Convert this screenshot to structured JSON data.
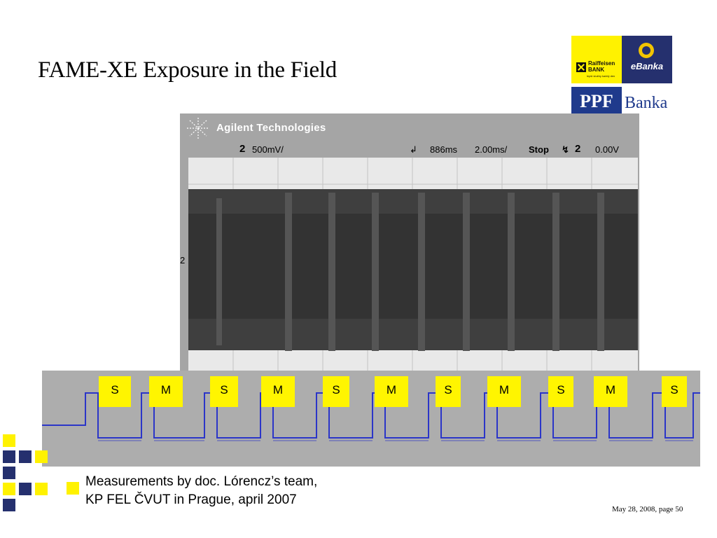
{
  "slide": {
    "title": "FAME-XE Exposure in the Field",
    "caption_line1": "Measurements by doc. Lórencz’s team,",
    "caption_line2": "KP FEL ČVUT in Prague, april 2007",
    "footer": "May 28, 2008, page 50"
  },
  "logos": {
    "raiffeisen_line1": "Raiffeisen",
    "raiffeisen_line2": "BANK",
    "raiffeisen_tagline": "lepší služby každý den",
    "ebanka": "eBanka",
    "ppf": "PPF",
    "banka": "Banka"
  },
  "oscilloscope": {
    "brand": "Agilent Technologies",
    "channel": "2",
    "volts_per_div": "500mV/",
    "trigger_delay": "886ms",
    "time_per_div": "2.00ms/",
    "run_state": "Stop",
    "trigger_channel": "2",
    "trigger_level": "0.00V",
    "side_marker": "2"
  },
  "sequence_labels": [
    "S",
    "M",
    "S",
    "M",
    "S",
    "M",
    "S",
    "M",
    "S",
    "M",
    "S"
  ],
  "colors": {
    "accent_yellow": "#fff200",
    "accent_navy": "#25306e",
    "waveform_blue": "#2b35c8",
    "scope_panel": "#a5a5a5"
  }
}
